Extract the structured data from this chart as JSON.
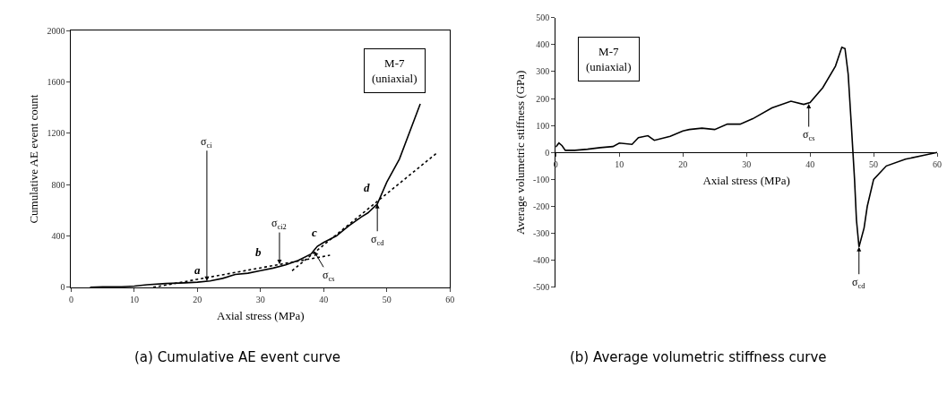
{
  "chart_data": [
    {
      "type": "line",
      "xlabel": "Axial stress (MPa)",
      "ylabel": "Cumulative AE event count",
      "xlim": [
        0,
        60
      ],
      "ylim": [
        0,
        2000
      ],
      "xticks": [
        0,
        10,
        20,
        30,
        40,
        50,
        60
      ],
      "yticks": [
        0,
        400,
        800,
        1200,
        1600,
        2000
      ],
      "marker": "none",
      "series": [
        {
          "color": "#000000",
          "line_style": "solid",
          "x": [
            3,
            5,
            8,
            10,
            12,
            15,
            18,
            20,
            22,
            24,
            26,
            28,
            30,
            32,
            34,
            36,
            38,
            38.5,
            39,
            40,
            42,
            44,
            46,
            47,
            48.5,
            50,
            52,
            55.3
          ],
          "values": [
            0,
            5,
            5,
            10,
            20,
            30,
            35,
            40,
            50,
            70,
            100,
            110,
            130,
            150,
            175,
            210,
            260,
            290,
            320,
            350,
            400,
            480,
            550,
            580,
            650,
            820,
            1000,
            1430
          ]
        },
        {
          "type": "line",
          "color": "#000000",
          "line_style": "dotted",
          "x": [
            13,
            41
          ],
          "values": [
            0,
            250
          ]
        },
        {
          "type": "line",
          "color": "#000000",
          "line_style": "dotted",
          "x": [
            35,
            58
          ],
          "values": [
            130,
            1050
          ]
        }
      ],
      "annotations": [
        "M-7",
        "(uniaxial)",
        {
          "text": "σ$_{ci}$",
          "x": 21.5,
          "y": 50
        },
        {
          "text": "σ$_{ci2}$",
          "x": 33,
          "y": 180
        },
        {
          "text": "σ$_{cs}$",
          "x": 38.5,
          "y": 280
        },
        {
          "text": "σ$_{cd}$",
          "x": 48.5,
          "y": 650
        },
        {
          "text": "a",
          "x": 22,
          "y": 50
        },
        {
          "text": "b",
          "x": 32,
          "y": 150
        },
        {
          "text": "c",
          "x": 38.5,
          "y": 290
        },
        {
          "text": "d",
          "x": 48.5,
          "y": 650
        },
        {
          "text": "(a) Cumulative AE event curve"
        }
      ]
    },
    {
      "type": "line",
      "xlabel": "Axial stress (MPa)",
      "ylabel": "Average volumetric stiffness (GPa)",
      "xlim": [
        0,
        60
      ],
      "ylim": [
        -500,
        500
      ],
      "xticks": [
        0,
        10,
        20,
        30,
        40,
        50,
        60
      ],
      "yticks": [
        -500,
        -400,
        -300,
        -200,
        -100,
        0,
        100,
        200,
        300,
        400,
        500
      ],
      "marker": "none",
      "series": [
        {
          "color": "#000000",
          "line_style": "solid",
          "x": [
            0,
            0.5,
            1,
            1.5,
            3,
            5,
            7,
            9,
            10,
            12,
            13,
            14.5,
            15.5,
            18,
            20,
            21,
            23,
            25,
            27,
            29,
            31,
            34,
            37,
            39,
            40,
            42,
            44,
            45,
            45.5,
            46,
            46.5,
            47,
            47.3,
            47.7,
            48.5,
            49,
            50,
            52,
            55,
            58,
            60
          ],
          "values": [
            20,
            35,
            25,
            8,
            8,
            12,
            18,
            22,
            35,
            30,
            55,
            62,
            45,
            60,
            80,
            85,
            90,
            85,
            105,
            105,
            125,
            165,
            190,
            178,
            185,
            240,
            320,
            390,
            385,
            290,
            100,
            -100,
            -250,
            -350,
            -280,
            -200,
            -100,
            -50,
            -25,
            -10,
            0
          ]
        }
      ],
      "annotations": [
        "M-7",
        "(uniaxial)",
        {
          "text": "σ$_{cs}$",
          "x": 39.8,
          "y": 180
        },
        {
          "text": "σ$_{cd}$",
          "x": 47.7,
          "y": -350
        },
        {
          "text": "(b) Average volumetric stiffness curve"
        }
      ]
    }
  ]
}
